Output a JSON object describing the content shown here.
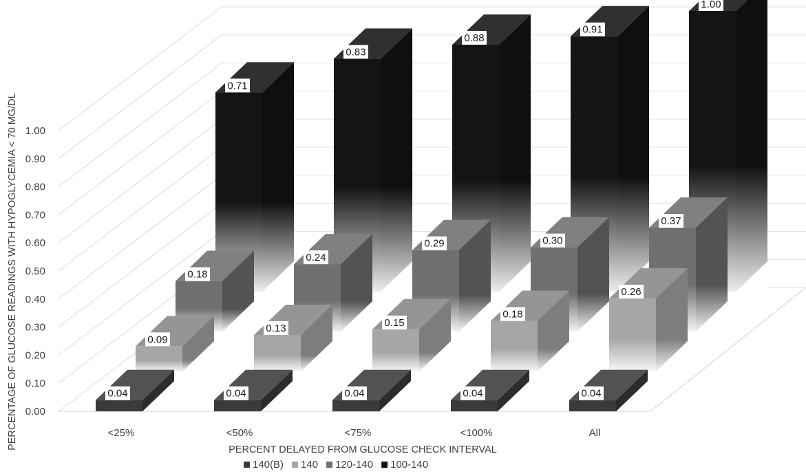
{
  "chart_data": {
    "type": "bar",
    "title": "",
    "xlabel": "PERCENT DELAYED FROM GLUCOSE CHECK INTERVAL",
    "ylabel": "PERCENTAGE OF GLUCOSE READINGS WITH HYPOGLYCEMIA < 70 MG/DL",
    "ylim": [
      0,
      1.0
    ],
    "yticks": [
      "0.00",
      "0.10",
      "0.20",
      "0.30",
      "0.40",
      "0.50",
      "0.60",
      "0.70",
      "0.80",
      "0.90",
      "1.00"
    ],
    "categories": [
      "<25%",
      "<50%",
      "<75%",
      "<100%",
      "All"
    ],
    "series": [
      {
        "name": "140(B)",
        "values": [
          0.04,
          0.04,
          0.04,
          0.04,
          0.04
        ],
        "labels": [
          "0.04",
          "0.04",
          "0.04",
          "0.04",
          "0.04"
        ],
        "color": "#3a3a3a"
      },
      {
        "name": "140",
        "values": [
          0.09,
          0.13,
          0.15,
          0.18,
          0.26
        ],
        "labels": [
          "0.09",
          "0.13",
          "0.15",
          "0.18",
          "0.26"
        ],
        "color": "#a6a6a6"
      },
      {
        "name": "120-140",
        "values": [
          0.18,
          0.24,
          0.29,
          0.3,
          0.37
        ],
        "labels": [
          "0.18",
          "0.24",
          "0.29",
          "0.30",
          "0.37"
        ],
        "color": "#6f6f6f"
      },
      {
        "name": "100-140",
        "values": [
          0.71,
          0.83,
          0.88,
          0.91,
          1.0
        ],
        "labels": [
          "0.71",
          "0.83",
          "0.88",
          "0.91",
          "1.00"
        ],
        "color": "#141414"
      }
    ],
    "legend_position": "bottom",
    "grid": true,
    "projection": "3d"
  }
}
